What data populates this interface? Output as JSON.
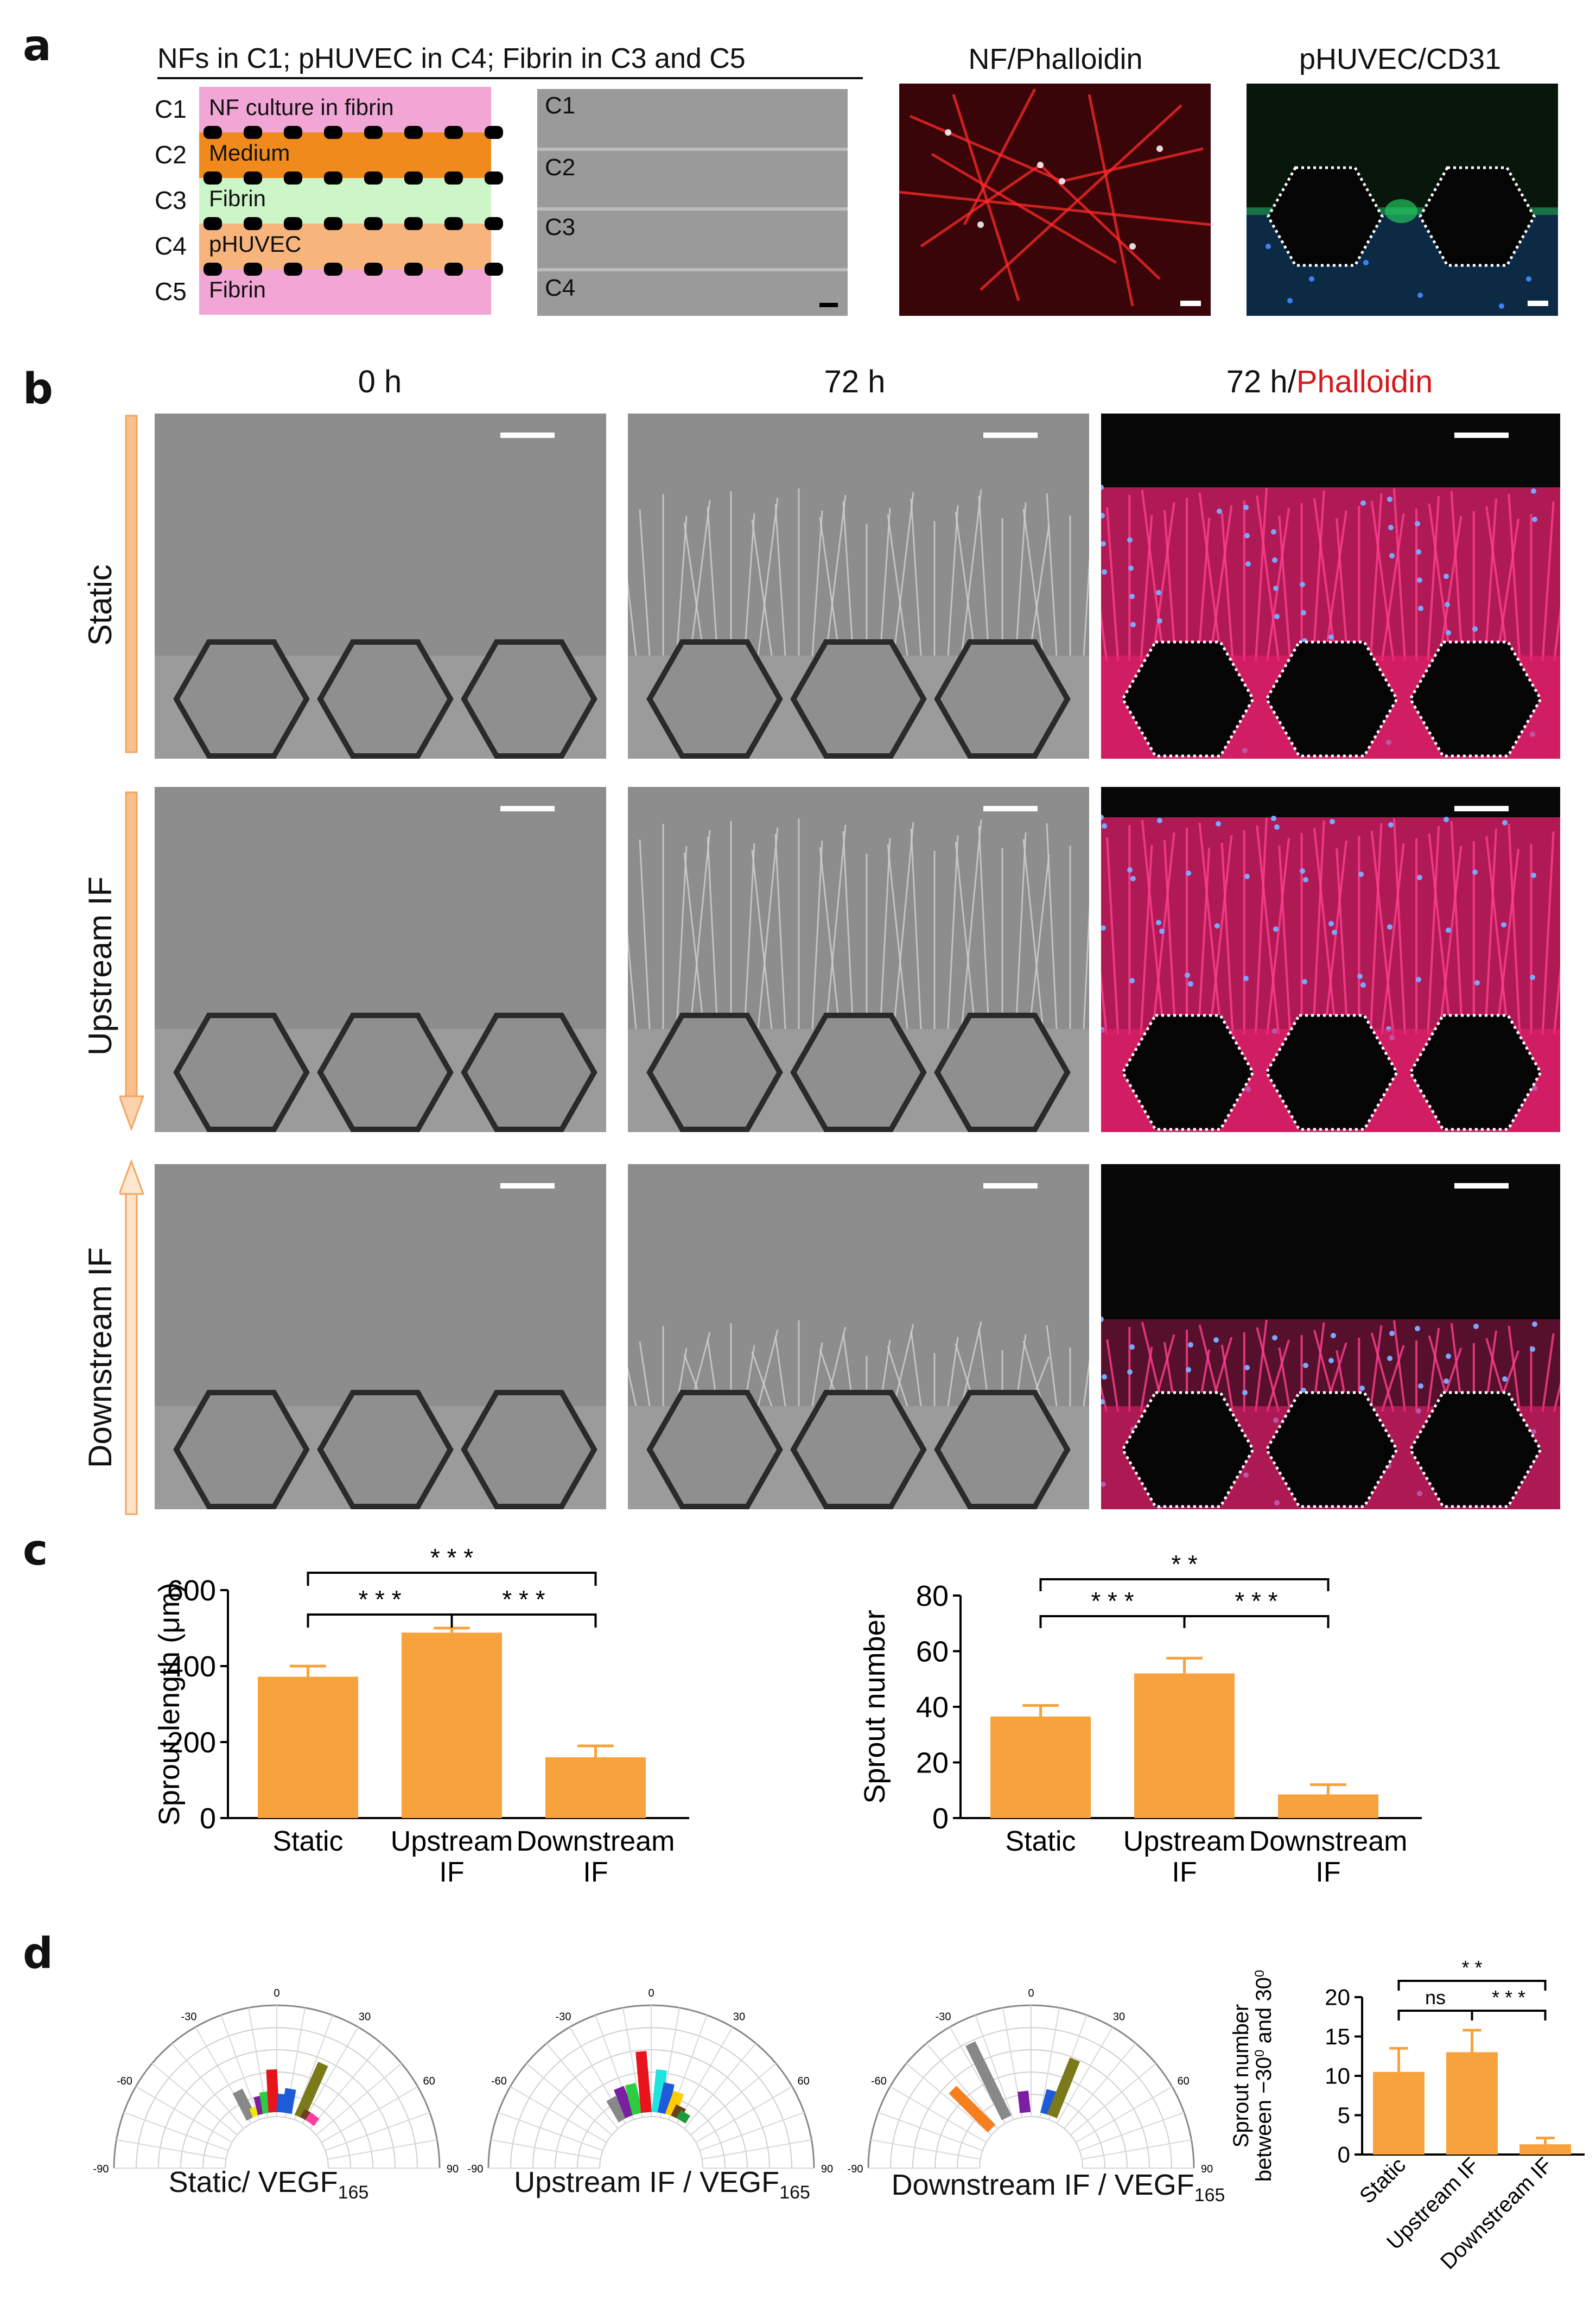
{
  "panels": {
    "a": "a",
    "b": "b",
    "c": "c",
    "d": "d"
  },
  "a": {
    "title": "NFs in C1; pHUVEC in C4; Fibrin in C3 and C5",
    "schematic": [
      {
        "ch": "C1",
        "label": "NF culture in fibrin",
        "color": "#f2a6d6"
      },
      {
        "ch": "C2",
        "label": "Medium",
        "color": "#f08a1c"
      },
      {
        "ch": "C3",
        "label": "Fibrin",
        "color": "#ccf5c8"
      },
      {
        "ch": "C4",
        "label": "pHUVEC",
        "color": "#f7b47c"
      },
      {
        "ch": "C5",
        "label": "Fibrin",
        "color": "#f2a6d6"
      }
    ],
    "bright_labels": [
      "C1",
      "C2",
      "C3",
      "C4"
    ],
    "nf_label": "NF/Phalloidin",
    "huvec_label": "pHUVEC/CD31"
  },
  "b": {
    "col_headers": [
      "0 h",
      "72 h",
      "72 h/"
    ],
    "col3_stain": "Phalloidin",
    "rows": [
      "Static",
      "Upstream IF",
      "Downstream IF"
    ]
  },
  "colors": {
    "orange": "#f7a23c",
    "red": "#d7191c",
    "green": "#1f9a3b",
    "stain": "#e8206e"
  },
  "c": {
    "sig": {
      "length": [
        "* * *",
        "* * *",
        "* * *"
      ],
      "number": [
        "* *",
        "* * *",
        "* * *"
      ]
    },
    "length_chart": {
      "ylabel": "Sprout length (μm)",
      "ylim": [
        0,
        600
      ],
      "ticks": [
        "0",
        "200",
        "400",
        "600"
      ],
      "cats": [
        [
          "Static",
          ""
        ],
        [
          "Upstream",
          "IF"
        ],
        [
          "Downstream",
          "IF"
        ]
      ]
    },
    "number_chart": {
      "ylabel": "Sprout number",
      "ylim": [
        0,
        80
      ],
      "ticks": [
        "0",
        "20",
        "40",
        "60",
        "80"
      ],
      "cats": [
        [
          "Static",
          ""
        ],
        [
          "Upstream",
          "IF"
        ],
        [
          "Downstream",
          "IF"
        ]
      ]
    }
  },
  "d": {
    "polar_labels": [
      "Static/ VEGF",
      "Upstream IF / VEGF",
      "Downstream IF / VEGF"
    ],
    "sub": "165",
    "polar_ticks": [
      "-90",
      "-60",
      "-30",
      "0",
      "30",
      "60",
      "90"
    ],
    "bar_ylabel1": "Sprout number",
    "bar_ylabel2a": "between −30",
    "bar_ylabel2b": " and 30",
    "sup": "0",
    "bar_ticks": [
      "0",
      "5",
      "10",
      "15",
      "20"
    ],
    "bar_cats": [
      "Static",
      "Upstream IF",
      "Downstream IF"
    ],
    "sig": [
      "ns",
      "* *",
      "* * *"
    ]
  },
  "chart_data": [
    {
      "type": "bar",
      "categories": [
        "Static",
        "Upstream IF",
        "Downstream IF"
      ],
      "values": [
        372,
        488,
        160
      ],
      "errors": [
        28,
        12,
        30
      ],
      "ylabel": "Sprout length (μm)",
      "ylim": [
        0,
        600
      ]
    },
    {
      "type": "bar",
      "categories": [
        "Static",
        "Upstream IF",
        "Downstream IF"
      ],
      "values": [
        36.5,
        52,
        8.5
      ],
      "errors": [
        4,
        5.5,
        3.5
      ],
      "ylabel": "Sprout number",
      "ylim": [
        0,
        80
      ]
    },
    {
      "type": "bar",
      "categories": [
        "Static",
        "Upstream IF",
        "Downstream IF"
      ],
      "values": [
        10.5,
        13,
        1.3
      ],
      "errors": [
        3,
        2.8,
        0.8
      ],
      "ylabel": "Sprout number between −30⁰ and 30⁰",
      "ylim": [
        0,
        20
      ]
    },
    {
      "type": "polar-bar",
      "title": "Static/ VEGF165",
      "bars": [
        {
          "angle": -27,
          "len": 0.5,
          "color": "#888888"
        },
        {
          "angle": -20,
          "len": 0.15,
          "color": "#f5e600"
        },
        {
          "angle": -14,
          "len": 0.3,
          "color": "#7a1fa2"
        },
        {
          "angle": -9,
          "len": 0.35,
          "color": "#2ecc40"
        },
        {
          "angle": -3,
          "len": 0.7,
          "color": "#e8141b"
        },
        {
          "angle": 5,
          "len": 0.3,
          "color": "#1e5bd8"
        },
        {
          "angle": 10,
          "len": 0.4,
          "color": "#1e5bd8"
        },
        {
          "angle": 24,
          "len": 0.95,
          "color": "#7a7a1a"
        },
        {
          "angle": 30,
          "len": 0.15,
          "color": "#6b3f1f"
        },
        {
          "angle": 36,
          "len": 0.15,
          "color": "#ff3fa0"
        }
      ]
    },
    {
      "type": "polar-bar",
      "title": "Upstream IF / VEGF165",
      "bars": [
        {
          "angle": -30,
          "len": 0.4,
          "color": "#888888"
        },
        {
          "angle": -22,
          "len": 0.5,
          "color": "#7a1fa2"
        },
        {
          "angle": -14,
          "len": 0.5,
          "color": "#2ecc40"
        },
        {
          "angle": -5,
          "len": 1.0,
          "color": "#e8141b"
        },
        {
          "angle": 6,
          "len": 0.7,
          "color": "#20e3e0"
        },
        {
          "angle": 12,
          "len": 0.5,
          "color": "#1e5bd8"
        },
        {
          "angle": 20,
          "len": 0.4,
          "color": "#ffcc00"
        },
        {
          "angle": 26,
          "len": 0.2,
          "color": "#6b3f1f"
        },
        {
          "angle": 32,
          "len": 0.15,
          "color": "#1f9a3b"
        }
      ]
    },
    {
      "type": "polar-bar",
      "title": "Downstream IF / VEGF165",
      "bars": [
        {
          "angle": -26,
          "len": 1.35,
          "color": "#888888"
        },
        {
          "angle": -45,
          "len": 0.9,
          "color": "#f57f1e"
        },
        {
          "angle": -6,
          "len": 0.35,
          "color": "#7a1fa2"
        },
        {
          "angle": 15,
          "len": 0.4,
          "color": "#1e5bd8"
        },
        {
          "angle": 22,
          "len": 1.0,
          "color": "#7a7a1a"
        }
      ]
    }
  ]
}
